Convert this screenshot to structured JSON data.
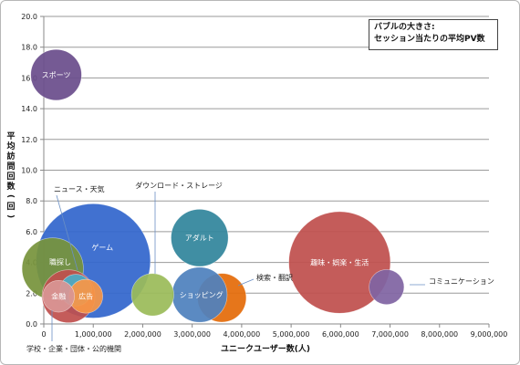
{
  "chart_data": {
    "type": "bubble",
    "xlabel": "ユニークユーザー数(人)",
    "ylabel": "平均訪問回数(回)",
    "xlim": [
      0,
      9000000
    ],
    "ylim": [
      0,
      20
    ],
    "xticks": [
      "0",
      "1,000,000",
      "2,000,000",
      "3,000,000",
      "4,000,000",
      "5,000,000",
      "6,000,000",
      "7,000,000",
      "8,000,000",
      "9,000,000"
    ],
    "yticks": [
      "0.0",
      "2.0",
      "4.0",
      "6.0",
      "8.0",
      "10.0",
      "12.0",
      "14.0",
      "16.0",
      "18.0",
      "20.0"
    ],
    "grid": "horizontal",
    "size_legend": [
      "バブルの大きさ:",
      "セッション当たりの平均PV数"
    ],
    "points": [
      {
        "label": "スポーツ",
        "x": 250000,
        "y": 16.2,
        "size": 4.8,
        "color": "#6b4d8c"
      },
      {
        "label": "ゲーム",
        "x": 1000000,
        "y": 4.1,
        "size": 10.8,
        "color": "#3366cc"
      },
      {
        "label": "アダルト",
        "x": 3150000,
        "y": 5.6,
        "size": 5.4,
        "color": "#31859c"
      },
      {
        "label": "趣味・娯楽・生活",
        "x": 5980000,
        "y": 4.0,
        "size": 9.6,
        "color": "#c0504d"
      },
      {
        "label": "コミュニケーション",
        "x": 6930000,
        "y": 2.4,
        "size": 3.3,
        "color": "#8064a2"
      },
      {
        "label": "検索・翻訳",
        "x": 3600000,
        "y": 1.7,
        "size": 4.6,
        "color": "#e46c0a"
      },
      {
        "label": "ショッピング",
        "x": 3150000,
        "y": 1.9,
        "size": 5.2,
        "color": "#4f81bd"
      },
      {
        "label": "ダウンロード・ストレージ",
        "x": 2200000,
        "y": 1.9,
        "size": 4.0,
        "color": "#9bbb59"
      },
      {
        "label": "職探し",
        "x": 180000,
        "y": 3.6,
        "size": 5.8,
        "color": "#77933c"
      },
      {
        "label": "学校・企業・団体・公的機関",
        "x": 500000,
        "y": 1.8,
        "size": 5.0,
        "color": "#c0504d"
      },
      {
        "label": "ニュース・天気",
        "x": 650000,
        "y": 2.2,
        "size": 3.0,
        "color": "#4bacc6"
      },
      {
        "label": "広告",
        "x": 850000,
        "y": 1.8,
        "size": 3.2,
        "color": "#f79646"
      },
      {
        "label": "金融",
        "x": 300000,
        "y": 1.8,
        "size": 3.0,
        "color": "#d99694"
      }
    ]
  }
}
